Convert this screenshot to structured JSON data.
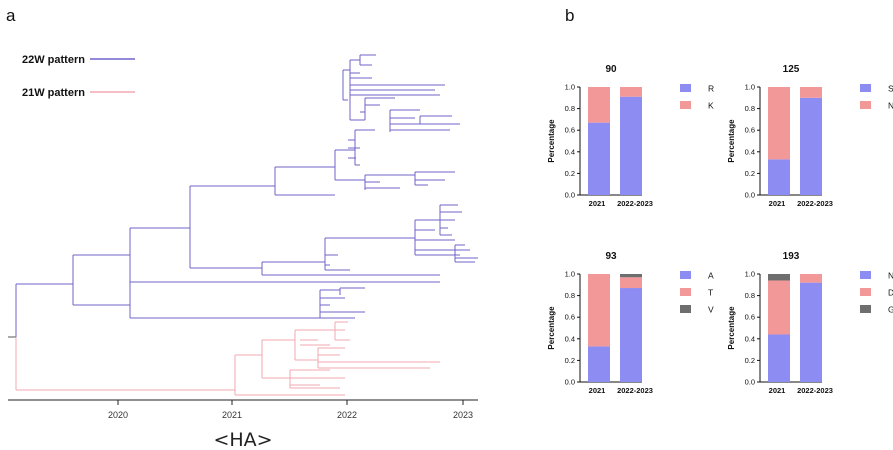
{
  "panel_a": {
    "letter": "a",
    "legend": [
      {
        "label": "22W pattern",
        "color": "#6f63c8"
      },
      {
        "label": "21W pattern",
        "color": "#f0a8b0"
      }
    ],
    "axis_ticks": [
      "2020",
      "2021",
      "2022",
      "2023"
    ],
    "axis_label": "<HA>"
  },
  "panel_b": {
    "letter": "b",
    "colors": {
      "purple": "#8c8cf2",
      "pink": "#f39898",
      "gray": "#6e6e6e"
    }
  },
  "chart_data": [
    {
      "type": "bar",
      "stacked": true,
      "title": "90",
      "ylabel": "Percentage",
      "ylim": [
        0,
        1.0
      ],
      "yticks": [
        "0.0",
        "0.2",
        "0.4",
        "0.6",
        "0.8",
        "1.0"
      ],
      "categories": [
        "2021",
        "2022-2023"
      ],
      "series": [
        {
          "name": "R",
          "color": "#8c8cf2",
          "values": [
            0.67,
            0.91
          ]
        },
        {
          "name": "K",
          "color": "#f39898",
          "values": [
            0.33,
            0.09
          ]
        }
      ]
    },
    {
      "type": "bar",
      "stacked": true,
      "title": "125",
      "ylabel": "Percentage",
      "ylim": [
        0,
        1.0
      ],
      "yticks": [
        "0.0",
        "0.2",
        "0.4",
        "0.6",
        "0.8",
        "1.0"
      ],
      "categories": [
        "2021",
        "2022-2023"
      ],
      "series": [
        {
          "name": "S",
          "color": "#8c8cf2",
          "values": [
            0.33,
            0.9
          ]
        },
        {
          "name": "N",
          "color": "#f39898",
          "values": [
            0.67,
            0.1
          ]
        }
      ]
    },
    {
      "type": "bar",
      "stacked": true,
      "title": "93",
      "ylabel": "Percentage",
      "ylim": [
        0,
        1.0
      ],
      "yticks": [
        "0.0",
        "0.2",
        "0.4",
        "0.6",
        "0.8",
        "1.0"
      ],
      "categories": [
        "2021",
        "2022-2023"
      ],
      "series": [
        {
          "name": "A",
          "color": "#8c8cf2",
          "values": [
            0.33,
            0.87
          ]
        },
        {
          "name": "T",
          "color": "#f39898",
          "values": [
            0.67,
            0.1
          ]
        },
        {
          "name": "V",
          "color": "#6e6e6e",
          "values": [
            0.0,
            0.03
          ]
        }
      ]
    },
    {
      "type": "bar",
      "stacked": true,
      "title": "193",
      "ylabel": "Percentage",
      "ylim": [
        0,
        1.0
      ],
      "yticks": [
        "0.0",
        "0.2",
        "0.4",
        "0.6",
        "0.8",
        "1.0"
      ],
      "categories": [
        "2021",
        "2022-2023"
      ],
      "series": [
        {
          "name": "N",
          "color": "#8c8cf2",
          "values": [
            0.44,
            0.92
          ]
        },
        {
          "name": "D",
          "color": "#f39898",
          "values": [
            0.5,
            0.08
          ]
        },
        {
          "name": "G",
          "color": "#6e6e6e",
          "values": [
            0.06,
            0.0
          ]
        }
      ]
    }
  ]
}
